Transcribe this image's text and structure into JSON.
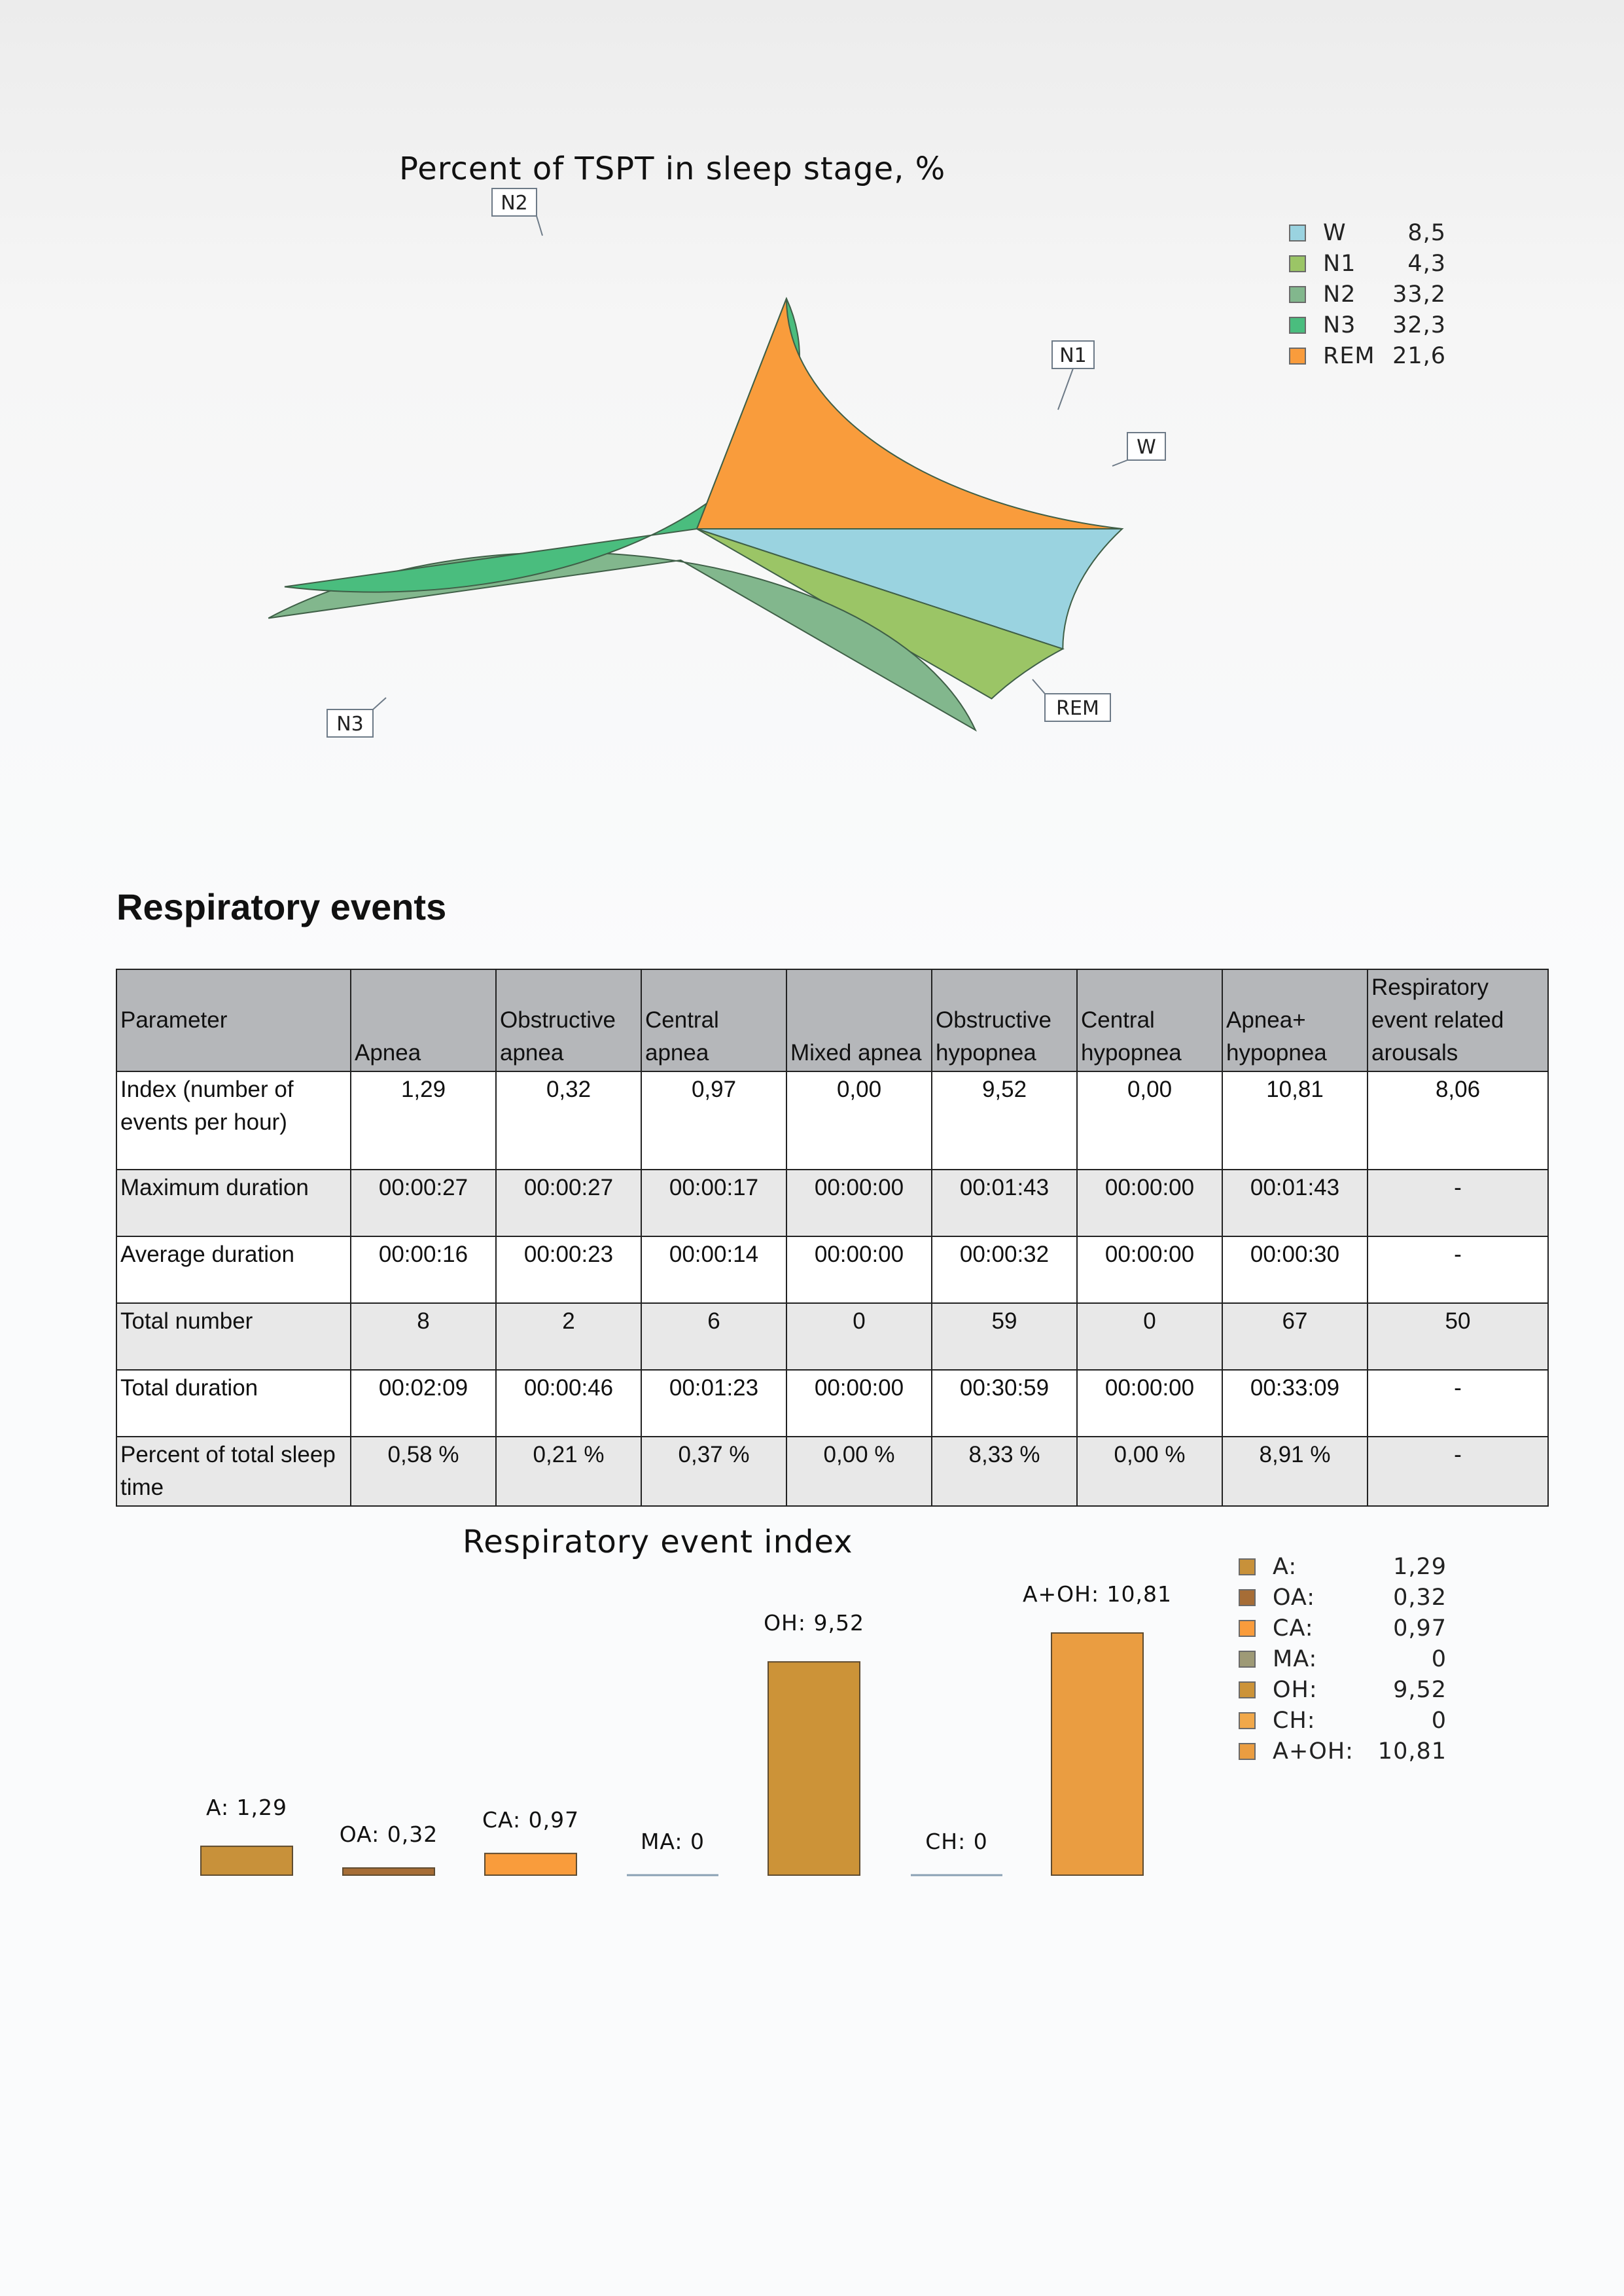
{
  "pie_chart": {
    "title": "Percent of TSPT in sleep stage, %",
    "legend": [
      {
        "label": "W",
        "value": "8,5",
        "color": "#9ad3e0"
      },
      {
        "label": "N1",
        "value": "4,3",
        "color": "#9bc566"
      },
      {
        "label": "N2",
        "value": "33,2",
        "color": "#82b78d"
      },
      {
        "label": "N3",
        "value": "32,3",
        "color": "#4abd7e"
      },
      {
        "label": "REM",
        "value": "21,6",
        "color": "#f99c3c"
      }
    ]
  },
  "respiratory": {
    "heading": "Respiratory events",
    "columns": [
      "Parameter",
      "Apnea",
      "Obstructive apnea",
      "Central apnea",
      "Mixed apnea",
      "Obstructive hypopnea",
      "Central hypopnea",
      "Apnea+ hypopnea",
      "Respiratory event related arousals"
    ],
    "rows": [
      {
        "label": "Index (number of events per hour)",
        "values": [
          "1,29",
          "0,32",
          "0,97",
          "0,00",
          "9,52",
          "0,00",
          "10,81",
          "8,06"
        ]
      },
      {
        "label": "Maximum duration",
        "values": [
          "00:00:27",
          "00:00:27",
          "00:00:17",
          "00:00:00",
          "00:01:43",
          "00:00:00",
          "00:01:43",
          "-"
        ]
      },
      {
        "label": "Average duration",
        "values": [
          "00:00:16",
          "00:00:23",
          "00:00:14",
          "00:00:00",
          "00:00:32",
          "00:00:00",
          "00:00:30",
          "-"
        ]
      },
      {
        "label": "Total number",
        "values": [
          "8",
          "2",
          "6",
          "0",
          "59",
          "0",
          "67",
          "50"
        ]
      },
      {
        "label": "Total duration",
        "values": [
          "00:02:09",
          "00:00:46",
          "00:01:23",
          "00:00:00",
          "00:30:59",
          "00:00:00",
          "00:33:09",
          "-"
        ]
      },
      {
        "label": "Percent of total sleep time",
        "values": [
          "0,58 %",
          "0,21 %",
          "0,37 %",
          "0,00 %",
          "8,33 %",
          "0,00 %",
          "8,91 %",
          "-"
        ]
      }
    ]
  },
  "bar_chart": {
    "title": "Respiratory event index",
    "legend": [
      {
        "label": "A:",
        "value": "1,29",
        "color": "#c8913a"
      },
      {
        "label": "OA:",
        "value": "0,32",
        "color": "#a66d36"
      },
      {
        "label": "CA:",
        "value": "0,97",
        "color": "#f99c3c"
      },
      {
        "label": "MA:",
        "value": "0",
        "color": "#9e9a76"
      },
      {
        "label": "OH:",
        "value": "9,52",
        "color": "#cc9338"
      },
      {
        "label": "CH:",
        "value": "0",
        "color": "#f1a84a"
      },
      {
        "label": "A+OH:",
        "value": "10,81",
        "color": "#ea9d41"
      }
    ]
  },
  "chart_data": [
    {
      "type": "pie",
      "title": "Percent of TSPT in sleep stage, %",
      "categories": [
        "W",
        "N1",
        "N2",
        "N3",
        "REM"
      ],
      "values": [
        8.5,
        4.3,
        33.2,
        32.3,
        21.6
      ],
      "colors": [
        "#9ad3e0",
        "#9bc566",
        "#82b78d",
        "#4abd7e",
        "#f99c3c"
      ],
      "exploded": "N2",
      "legend_position": "right"
    },
    {
      "type": "bar",
      "title": "Respiratory event index",
      "categories": [
        "A",
        "OA",
        "CA",
        "MA",
        "OH",
        "CH",
        "A+OH"
      ],
      "values": [
        1.29,
        0.32,
        0.97,
        0,
        9.52,
        0,
        10.81
      ],
      "data_labels": [
        "A: 1,29",
        "OA: 0,32",
        "CA: 0,97",
        "MA: 0",
        "OH: 9,52",
        "CH: 0",
        "A+OH: 10,81"
      ],
      "colors": [
        "#c8913a",
        "#a66d36",
        "#f99c3c",
        "#9e9a76",
        "#cc9338",
        "#f1a84a",
        "#ea9d41"
      ],
      "legend_position": "right",
      "grid": false
    }
  ]
}
